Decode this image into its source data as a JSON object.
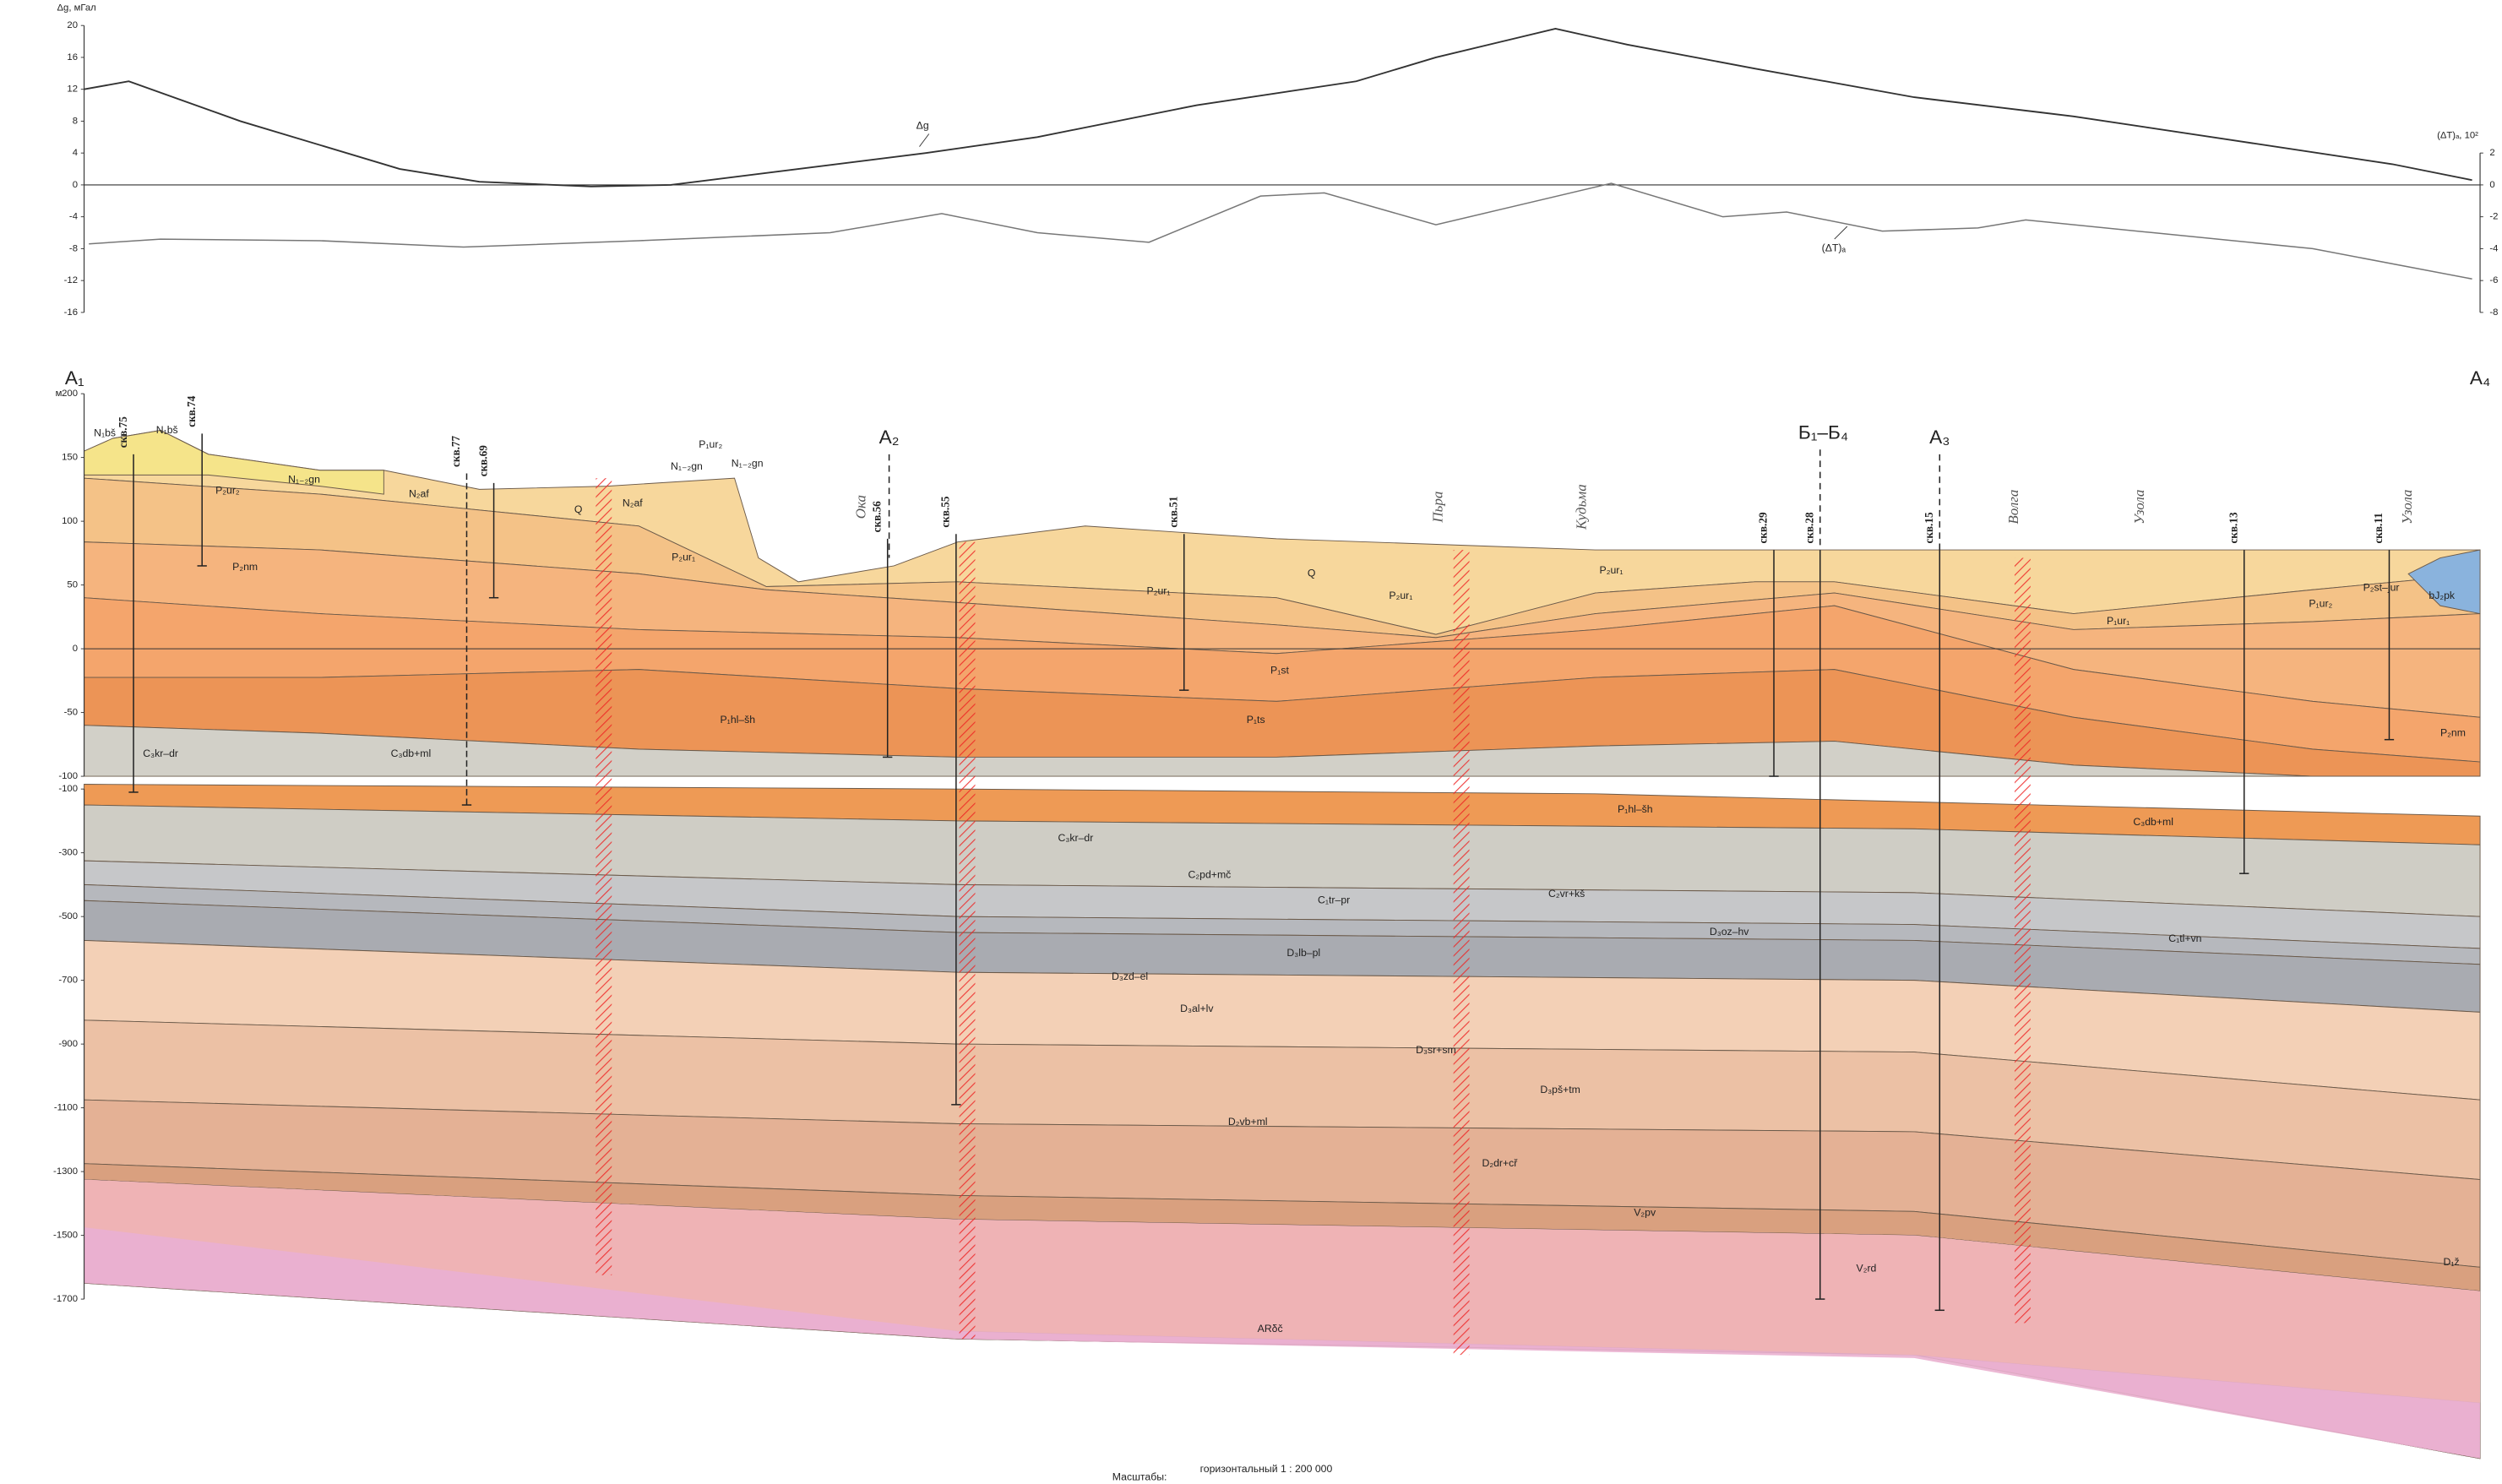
{
  "geophysics": {
    "dg_axis_label": "Δg, мГал",
    "dg_ticks": [
      "20",
      "16",
      "12",
      "8",
      "4",
      "0",
      "-4",
      "-8",
      "-12",
      "-16"
    ],
    "dt_axis_label": "(ΔT)ₐ, 10²",
    "dt_ticks": [
      "2",
      "0",
      "-2",
      "-4",
      "-6",
      "-8"
    ],
    "dg_curve_label": "Δg",
    "dt_curve_label": "(ΔT)ₐ"
  },
  "section": {
    "unit": "м",
    "points": [
      "A₁",
      "A₂",
      "Б₁–Б₄",
      "A₃",
      "A₄"
    ],
    "upper_ticks": [
      "200",
      "150",
      "100",
      "50",
      "0",
      "-50",
      "-100"
    ],
    "lower_ticks": [
      "-100",
      "-300",
      "-500",
      "-700",
      "-900",
      "-1100",
      "-1300",
      "-1500",
      "-1700"
    ],
    "wells": [
      "скв.75",
      "скв.74",
      "скв.77",
      "скв.69",
      "скв.56",
      "скв.55",
      "скв.51",
      "скв.29",
      "скв.28",
      "скв.15",
      "скв.13",
      "скв.11"
    ],
    "rivers": [
      "Ока",
      "Пьра",
      "Кудьма",
      "Волга",
      "Узола",
      "Узола"
    ],
    "layers": [
      "N₁bš",
      "N₁bš",
      "P₂ur₂",
      "N₁₋₂gn",
      "N₂af",
      "Q",
      "N₂af",
      "P₁ur₂",
      "N₁₋₂gn",
      "N₁₋₂gn",
      "P₂ur₁",
      "P₂nm",
      "Q",
      "P₂ur₁",
      "P₂ur₁",
      "P₂ur₁",
      "P₁ur₁",
      "P₁ur₂",
      "P₂st–jur",
      "bJ₂pk",
      "P₁st",
      "P₁ts",
      "P₁hl–šh",
      "C₃kr–dr",
      "C₃db+ml",
      "P₂nm",
      "P₁hl–šh",
      "C₃kr–dr",
      "C₃db+ml",
      "C₂pd+mč",
      "C₁tr–pr",
      "C₂vr+kš",
      "D₃oz–hv",
      "C₁tl+vn",
      "D₃lb–pl",
      "D₃zd–el",
      "D₃al+lv",
      "D₃sr+sm",
      "D₃pš+tm",
      "D₂vb+ml",
      "D₂dr+cř",
      "V₂pv",
      "V₂rd",
      "ARδč",
      "D₁ž"
    ]
  },
  "footer": {
    "scale_label": "Масштабы:",
    "horizontal": "горизонтальный 1 : 200 000"
  }
}
